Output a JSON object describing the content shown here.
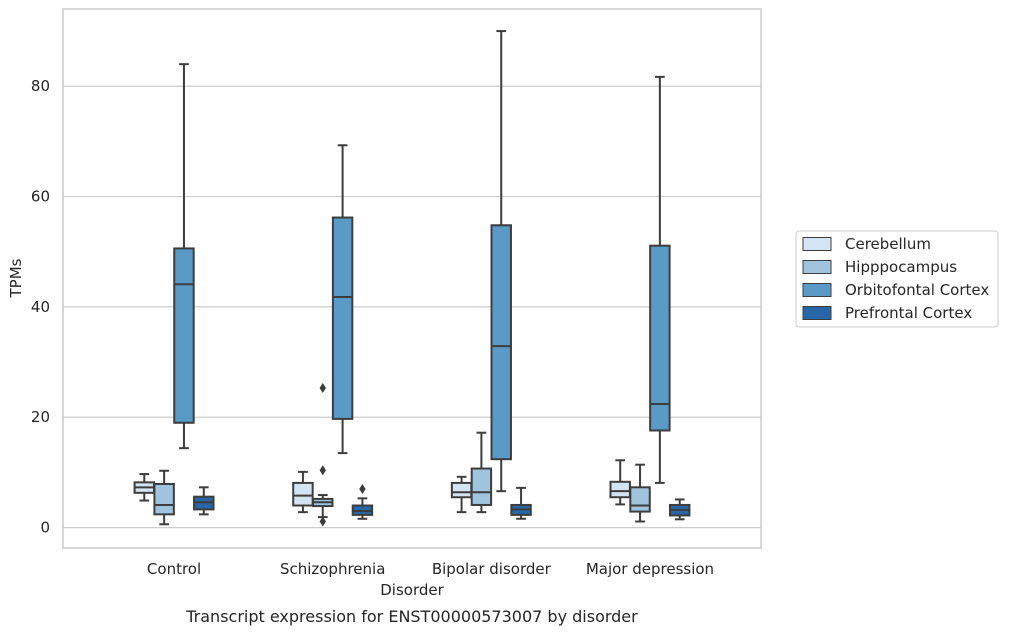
{
  "caption": "Transcript expression for ENST00000573007 by disorder",
  "chart_data": {
    "type": "box",
    "xlabel": "Disorder",
    "ylabel": "TPMs",
    "ylim": [
      -3.7,
      94
    ],
    "yticks": [
      0,
      20,
      40,
      60,
      80
    ],
    "grid": "horizontal",
    "legend_position": "right",
    "categories": [
      "Control",
      "Schizophrenia",
      "Bipolar disorder",
      "Major depression"
    ],
    "series": [
      {
        "name": "Cerebellum",
        "color": "#d3e4f2",
        "boxes": [
          {
            "whisker_low": 4.9,
            "q1": 6.3,
            "median": 7.3,
            "q3": 8.2,
            "whisker_high": 9.7,
            "outliers": []
          },
          {
            "whisker_low": 2.8,
            "q1": 4.0,
            "median": 5.8,
            "q3": 8.1,
            "whisker_high": 10.1,
            "outliers": []
          },
          {
            "whisker_low": 2.8,
            "q1": 5.5,
            "median": 6.4,
            "q3": 8.1,
            "whisker_high": 9.2,
            "outliers": []
          },
          {
            "whisker_low": 4.2,
            "q1": 5.5,
            "median": 6.6,
            "q3": 8.3,
            "whisker_high": 12.2,
            "outliers": []
          }
        ]
      },
      {
        "name": "Hipppocampus",
        "color": "#a0c3de",
        "boxes": [
          {
            "whisker_low": 0.6,
            "q1": 2.4,
            "median": 4.1,
            "q3": 7.9,
            "whisker_high": 10.3,
            "outliers": []
          },
          {
            "whisker_low": 1.9,
            "q1": 3.9,
            "median": 4.6,
            "q3": 5.2,
            "whisker_high": 5.9,
            "outliers": [
              1.1,
              10.4,
              25.3
            ]
          },
          {
            "whisker_low": 2.8,
            "q1": 4.1,
            "median": 6.4,
            "q3": 10.7,
            "whisker_high": 17.2,
            "outliers": []
          },
          {
            "whisker_low": 1.1,
            "q1": 2.9,
            "median": 4.0,
            "q3": 7.3,
            "whisker_high": 11.4,
            "outliers": []
          }
        ]
      },
      {
        "name": "Orbitofontal Cortex",
        "color": "#5a9ac6",
        "boxes": [
          {
            "whisker_low": 14.4,
            "q1": 19.0,
            "median": 44.1,
            "q3": 50.6,
            "whisker_high": 84.0,
            "outliers": []
          },
          {
            "whisker_low": 13.5,
            "q1": 19.7,
            "median": 41.8,
            "q3": 56.2,
            "whisker_high": 69.3,
            "outliers": []
          },
          {
            "whisker_low": 6.6,
            "q1": 12.4,
            "median": 32.9,
            "q3": 54.8,
            "whisker_high": 90.0,
            "outliers": []
          },
          {
            "whisker_low": 8.1,
            "q1": 17.6,
            "median": 22.4,
            "q3": 51.1,
            "whisker_high": 81.7,
            "outliers": []
          }
        ]
      },
      {
        "name": "Prefrontal Cortex",
        "color": "#2867a7",
        "boxes": [
          {
            "whisker_low": 2.4,
            "q1": 3.3,
            "median": 4.6,
            "q3": 5.6,
            "whisker_high": 7.3,
            "outliers": []
          },
          {
            "whisker_low": 1.6,
            "q1": 2.3,
            "median": 3.0,
            "q3": 4.0,
            "whisker_high": 5.3,
            "outliers": [
              7.0
            ]
          },
          {
            "whisker_low": 1.6,
            "q1": 2.3,
            "median": 3.3,
            "q3": 4.1,
            "whisker_high": 7.2,
            "outliers": []
          },
          {
            "whisker_low": 1.5,
            "q1": 2.2,
            "median": 3.2,
            "q3": 4.1,
            "whisker_high": 5.1,
            "outliers": []
          }
        ]
      }
    ]
  }
}
